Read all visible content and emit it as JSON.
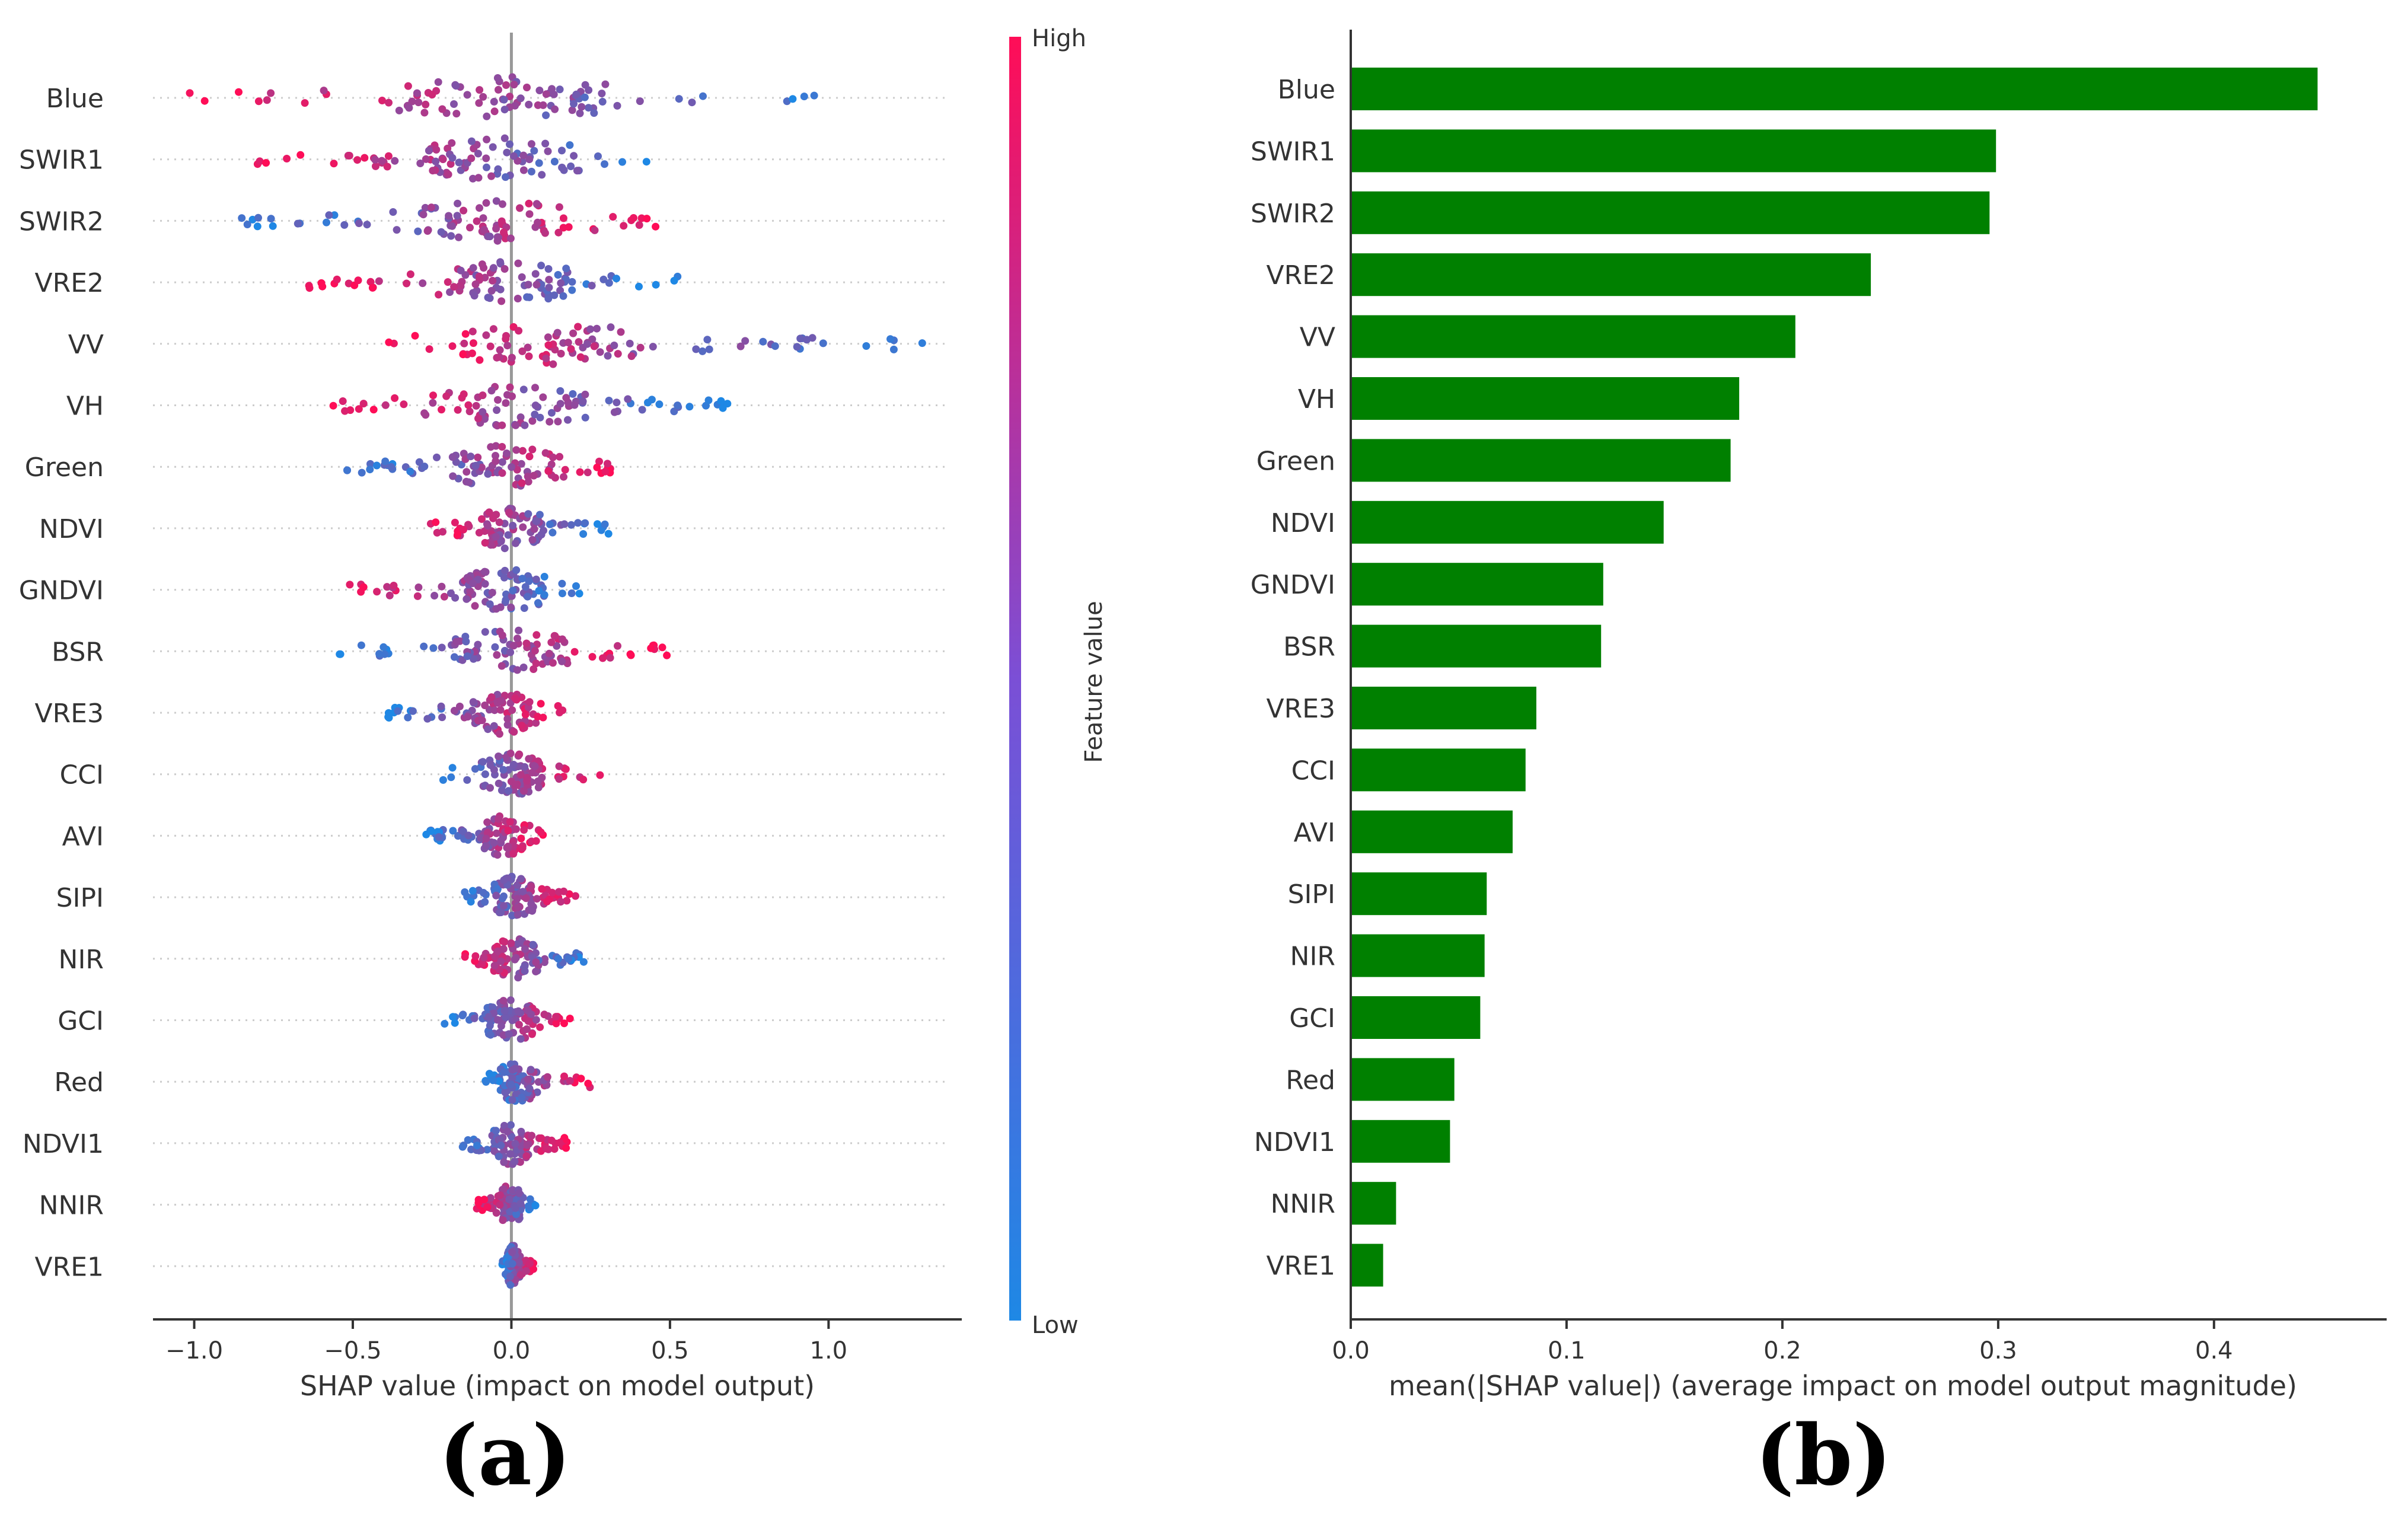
{
  "panel_labels": {
    "a": "(a)",
    "b": "(b)"
  },
  "colors": {
    "high": "#ff0d57",
    "low": "#1e88e5",
    "bar": "#008000",
    "axis": "#333333",
    "zero_line": "#999999",
    "guide": "#cccccc"
  },
  "chart_data": [
    {
      "type": "scatter",
      "subtype": "shap-beeswarm",
      "xlabel": "SHAP value (impact on model output)",
      "xlim": [
        -1.13,
        1.42
      ],
      "xticks": [
        -1.0,
        -0.5,
        0.0,
        0.5,
        1.0
      ],
      "xtick_labels": [
        "−1.0",
        "−0.5",
        "0.0",
        "0.5",
        "1.0"
      ],
      "features": [
        "Blue",
        "SWIR1",
        "SWIR2",
        "VRE2",
        "VV",
        "VH",
        "Green",
        "NDVI",
        "GNDVI",
        "BSR",
        "VRE3",
        "CCI",
        "AVI",
        "SIPI",
        "NIR",
        "GCI",
        "Red",
        "NDVI1",
        "NNIR",
        "VRE1"
      ],
      "ranges": [
        [
          -1.03,
          0.96
        ],
        [
          -0.81,
          0.57
        ],
        [
          -0.86,
          0.46
        ],
        [
          -0.64,
          0.53
        ],
        [
          -0.41,
          1.31
        ],
        [
          -0.58,
          0.71
        ],
        [
          -0.54,
          0.35
        ],
        [
          -0.27,
          0.31
        ],
        [
          -0.52,
          0.26
        ],
        [
          -0.55,
          0.5
        ],
        [
          -0.39,
          0.17
        ],
        [
          -0.25,
          0.28
        ],
        [
          -0.27,
          0.1
        ],
        [
          -0.15,
          0.21
        ],
        [
          -0.15,
          0.24
        ],
        [
          -0.22,
          0.22
        ],
        [
          -0.09,
          0.26
        ],
        [
          -0.17,
          0.18
        ],
        [
          -0.11,
          0.08
        ],
        [
          -0.03,
          0.07
        ]
      ],
      "positive_side_value": [
        "low",
        "low",
        "high",
        "low",
        "low",
        "low",
        "high",
        "low",
        "low",
        "high",
        "high",
        "high",
        "high",
        "high",
        "low",
        "high",
        "high",
        "high",
        "low",
        "high"
      ],
      "colorbar": {
        "label": "Feature value",
        "high_label": "High",
        "low_label": "Low"
      }
    },
    {
      "type": "bar",
      "orientation": "horizontal",
      "xlabel": "mean(|SHAP value|) (average impact on model output magnitude)",
      "xlim": [
        0,
        0.48
      ],
      "xticks": [
        0.0,
        0.1,
        0.2,
        0.3,
        0.4
      ],
      "xtick_labels": [
        "0.0",
        "0.1",
        "0.2",
        "0.3",
        "0.4"
      ],
      "categories": [
        "Blue",
        "SWIR1",
        "SWIR2",
        "VRE2",
        "VV",
        "VH",
        "Green",
        "NDVI",
        "GNDVI",
        "BSR",
        "VRE3",
        "CCI",
        "AVI",
        "SIPI",
        "NIR",
        "GCI",
        "Red",
        "NDVI1",
        "NNIR",
        "VRE1"
      ],
      "values": [
        0.448,
        0.299,
        0.296,
        0.241,
        0.206,
        0.18,
        0.176,
        0.145,
        0.117,
        0.116,
        0.086,
        0.081,
        0.075,
        0.063,
        0.062,
        0.06,
        0.048,
        0.046,
        0.021,
        0.015
      ]
    }
  ]
}
